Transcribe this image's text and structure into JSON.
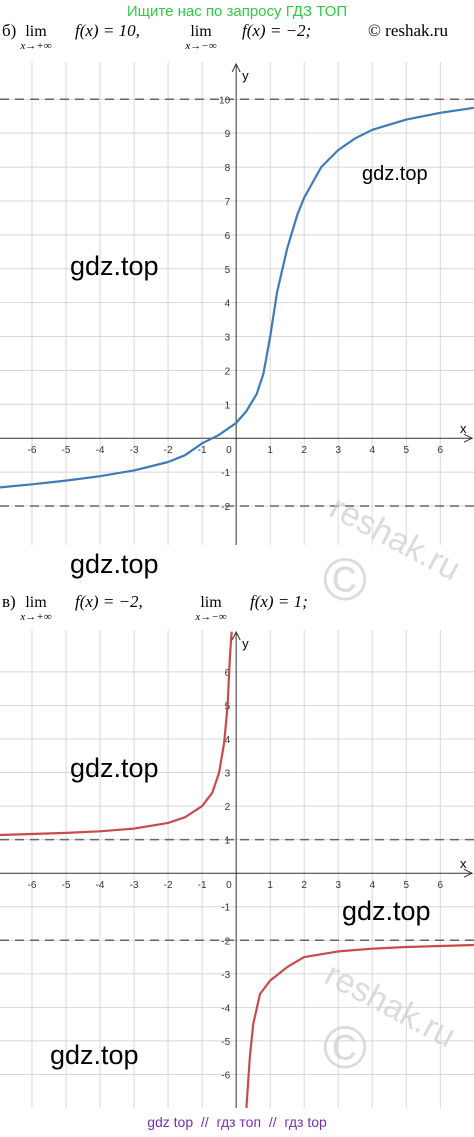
{
  "header": "Ищите нас по запросу ГДЗ ТОП",
  "parts": [
    {
      "label": "б)",
      "limits": [
        {
          "op": "lim",
          "sub": "x→+∞",
          "expr": "f(x) = 10,"
        },
        {
          "op": "lim",
          "sub": "x→−∞",
          "expr": "f(x) = −2;"
        }
      ],
      "copyright": "© reshak.ru"
    },
    {
      "label": "в)",
      "limits": [
        {
          "op": "lim",
          "sub": "x→+∞",
          "expr": "f(x) = −2,"
        },
        {
          "op": "lim",
          "sub": "x→−∞",
          "expr": "f(x) = 1;"
        }
      ]
    }
  ],
  "graphs": [
    {
      "x_label": "x",
      "y_label": "y",
      "origin_label": "0",
      "color": "#3d7ab8",
      "xlim": [
        -6.94,
        6.99
      ],
      "ylim": [
        -3.15,
        11.1
      ],
      "xticks": [
        -6,
        -5,
        -4,
        -3,
        -2,
        -1,
        1,
        2,
        3,
        4,
        5,
        6
      ],
      "yticks": [
        -2,
        -1,
        1,
        2,
        3,
        4,
        5,
        6,
        7,
        8,
        9,
        10
      ],
      "asymptotes": [
        10,
        -2
      ],
      "x": [
        -6.94,
        -6,
        -5,
        -4,
        -3,
        -2,
        -1.5,
        -1,
        -0.5,
        0,
        0.3,
        0.6,
        0.8,
        1,
        1.2,
        1.5,
        1.8,
        2,
        2.5,
        3,
        3.5,
        4,
        5,
        6,
        6.99
      ],
      "y": [
        -1.45,
        -1.36,
        -1.25,
        -1.12,
        -0.95,
        -0.7,
        -0.5,
        -0.15,
        0.1,
        0.45,
        0.8,
        1.3,
        1.9,
        3,
        4.3,
        5.6,
        6.6,
        7.1,
        8,
        8.5,
        8.85,
        9.1,
        9.4,
        9.6,
        9.75
      ]
    },
    {
      "x_label": "x",
      "y_label": "y",
      "origin_label": "0",
      "color": "#c84b4b",
      "xlim": [
        -6.94,
        6.99
      ],
      "ylim": [
        -7,
        7.25
      ],
      "xticks": [
        -6,
        -5,
        -4,
        -3,
        -2,
        -1,
        1,
        2,
        3,
        4,
        5,
        6
      ],
      "yticks": [
        -6,
        -5,
        -4,
        -3,
        -2,
        -1,
        1,
        2,
        3,
        4,
        5,
        6
      ],
      "asymptotes": [
        1,
        -2
      ],
      "x": [
        -6.94,
        -5,
        -4,
        -3,
        -2,
        -1.5,
        -1,
        -0.7,
        -0.5,
        -0.35,
        -0.25,
        -0.18,
        -0.13,
        null,
        0.3,
        0.4,
        0.5,
        0.7,
        1,
        1.5,
        2,
        3,
        4,
        5,
        6,
        6.99
      ],
      "y": [
        1.14,
        1.2,
        1.25,
        1.33,
        1.5,
        1.67,
        2,
        2.4,
        3,
        3.9,
        5,
        6.5,
        7.2,
        null,
        -7,
        -5.5,
        -4.5,
        -3.6,
        -3.2,
        -2.8,
        -2.5,
        -2.33,
        -2.25,
        -2.2,
        -2.17,
        -2.14
      ]
    }
  ],
  "watermarks": [
    "gdz.top",
    "gdz.top",
    "gdz.top",
    "gdz.top",
    "gdz.top",
    "gdz.top"
  ],
  "stamps": [
    {
      "site": "reshak.ru",
      "mark": "©"
    },
    {
      "site": "reshak.ru",
      "mark": "©"
    }
  ],
  "footer": "gdz top  //  гдз топ  //  гдз top"
}
